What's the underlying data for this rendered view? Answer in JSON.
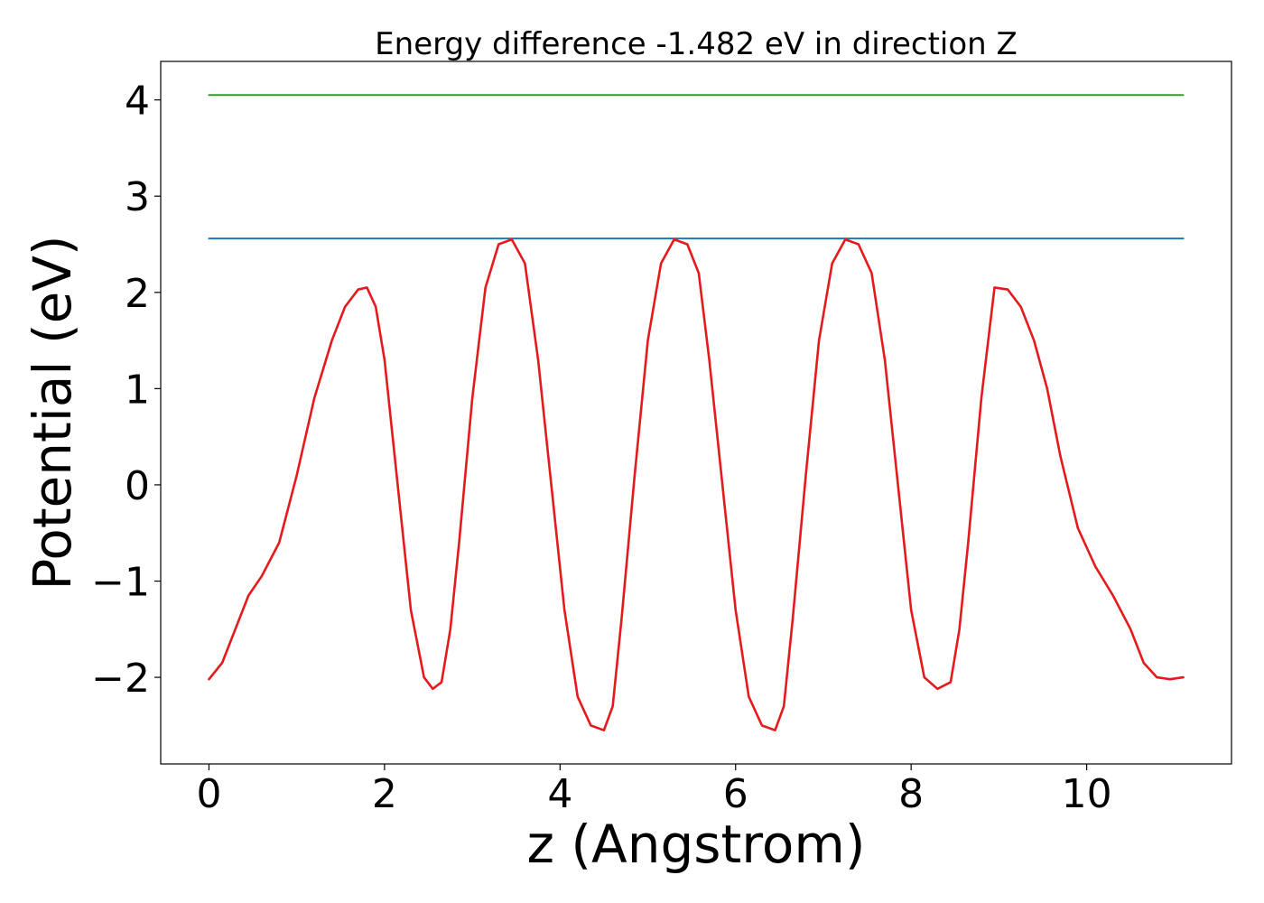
{
  "chart_data": {
    "type": "line",
    "title": "Energy difference -1.482 eV in direction Z",
    "xlabel": "z (Angstrom)",
    "ylabel": "Potential (eV)",
    "xlim": [
      -0.55,
      11.65
    ],
    "ylim": [
      -2.9,
      4.4
    ],
    "x_ticks": [
      0,
      2,
      4,
      6,
      8,
      10
    ],
    "x_tick_labels": [
      "0",
      "2",
      "4",
      "6",
      "8",
      "10"
    ],
    "y_ticks": [
      -2,
      -1,
      0,
      1,
      2,
      3,
      4
    ],
    "y_tick_labels": [
      "−2",
      "−1",
      "0",
      "1",
      "2",
      "3",
      "4"
    ],
    "grid": false,
    "legend": "none",
    "series": [
      {
        "color": "#2ca02c",
        "style": "horizontal-line",
        "x": [
          0,
          11.1
        ],
        "y": [
          4.05,
          4.05
        ]
      },
      {
        "color": "#1f77b4",
        "style": "horizontal-line",
        "x": [
          0,
          11.1
        ],
        "y": [
          2.56,
          2.56
        ]
      },
      {
        "color": "#e41a1c",
        "style": "line",
        "x": [
          0.0,
          0.15,
          0.3,
          0.45,
          0.6,
          0.8,
          1.0,
          1.2,
          1.4,
          1.55,
          1.7,
          1.8,
          1.9,
          2.0,
          2.15,
          2.3,
          2.45,
          2.55,
          2.65,
          2.75,
          2.85,
          3.0,
          3.15,
          3.3,
          3.45,
          3.6,
          3.75,
          3.9,
          4.05,
          4.2,
          4.35,
          4.5,
          4.6,
          4.7,
          4.85,
          5.0,
          5.15,
          5.3,
          5.45,
          5.58,
          5.7,
          5.85,
          6.0,
          6.15,
          6.3,
          6.45,
          6.55,
          6.65,
          6.8,
          6.95,
          7.1,
          7.25,
          7.4,
          7.55,
          7.7,
          7.85,
          8.0,
          8.15,
          8.3,
          8.45,
          8.55,
          8.65,
          8.8,
          8.95,
          9.1,
          9.25,
          9.4,
          9.55,
          9.7,
          9.9,
          10.1,
          10.3,
          10.5,
          10.65,
          10.8,
          10.95,
          11.1
        ],
        "y": [
          -2.02,
          -1.85,
          -1.5,
          -1.15,
          -0.95,
          -0.6,
          0.1,
          0.9,
          1.5,
          1.85,
          2.03,
          2.05,
          1.85,
          1.3,
          0.0,
          -1.3,
          -2.0,
          -2.12,
          -2.05,
          -1.5,
          -0.6,
          0.9,
          2.05,
          2.5,
          2.55,
          2.3,
          1.3,
          0.0,
          -1.3,
          -2.2,
          -2.5,
          -2.55,
          -2.3,
          -1.4,
          0.1,
          1.5,
          2.3,
          2.55,
          2.5,
          2.2,
          1.3,
          0.0,
          -1.3,
          -2.2,
          -2.5,
          -2.55,
          -2.3,
          -1.4,
          0.1,
          1.5,
          2.3,
          2.55,
          2.5,
          2.2,
          1.3,
          0.0,
          -1.3,
          -2.0,
          -2.12,
          -2.05,
          -1.5,
          -0.6,
          0.9,
          2.05,
          2.03,
          1.85,
          1.5,
          1.0,
          0.3,
          -0.45,
          -0.85,
          -1.15,
          -1.5,
          -1.85,
          -2.0,
          -2.02,
          -2.0
        ]
      }
    ]
  }
}
